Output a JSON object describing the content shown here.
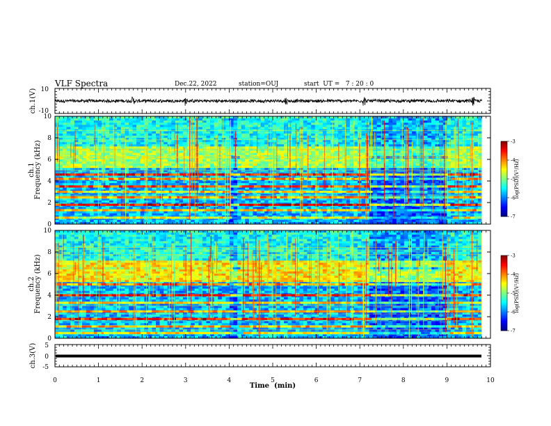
{
  "header": {
    "title": "VLF Spectra",
    "date": "Dec.22, 2022",
    "station": "station=OUJ",
    "start_time": "start  UT =   7 : 20 : 0"
  },
  "chart_data": [
    {
      "type": "line",
      "panel": "ch1-waveform",
      "ylabel": "ch.1(V)",
      "ylim": [
        -10,
        10
      ],
      "yticks": [
        10,
        -10
      ],
      "xlim": [
        0,
        10
      ],
      "signal": "noisy waveform centered near 0 V, amplitude about ±1 V with spikes to about ±3 V",
      "spikes_min": [
        1.8,
        3.0,
        5.3,
        7.1,
        9.6
      ]
    },
    {
      "type": "heatmap",
      "panel": "ch1-spectrogram",
      "ylabel": "ch.1\nFrequency (kHz)",
      "ylim": [
        0,
        10
      ],
      "yticks": [
        "0",
        "2",
        "4",
        "6",
        "8",
        "10"
      ],
      "xlim": [
        0,
        9.8
      ],
      "colorbar": {
        "label": "log(PSD)(V²/Hz)",
        "range": [
          -7,
          -3
        ],
        "ticks": [
          "-3",
          "-4",
          "-5",
          "-6",
          "-7"
        ]
      },
      "bands_khz": [
        {
          "f": 6.2,
          "level": -4.8
        },
        {
          "f": 4.6,
          "level": -3.6
        },
        {
          "f": 4.2,
          "level": -4.2
        },
        {
          "f": 3.5,
          "level": -3.8
        },
        {
          "f": 3.0,
          "level": -4.4
        },
        {
          "f": 2.5,
          "level": -4.1
        },
        {
          "f": 1.8,
          "level": -3.5
        },
        {
          "f": 1.3,
          "level": -4.3
        },
        {
          "f": 0.6,
          "level": -4.5
        }
      ],
      "quiet_intervals_min": [
        [
          4.0,
          4.2
        ],
        [
          7.2,
          9.0
        ]
      ]
    },
    {
      "type": "heatmap",
      "panel": "ch2-spectrogram",
      "ylabel": "ch.2\nFrequency (kHz)",
      "ylim": [
        0,
        10
      ],
      "yticks": [
        "0",
        "2",
        "4",
        "6",
        "8",
        "10"
      ],
      "xlim": [
        0,
        9.8
      ],
      "colorbar": {
        "label": "log(PSD)(V²/Hz)",
        "range": [
          -7,
          -3
        ],
        "ticks": [
          "-3",
          "-4",
          "-5",
          "-6",
          "-7"
        ]
      },
      "bands_khz": [
        {
          "f": 6.5,
          "level": -4.6
        },
        {
          "f": 5.0,
          "level": -4.0
        },
        {
          "f": 4.0,
          "level": -3.6
        },
        {
          "f": 3.3,
          "level": -4.3
        },
        {
          "f": 2.5,
          "level": -4.0
        },
        {
          "f": 1.8,
          "level": -3.6
        },
        {
          "f": 1.1,
          "level": -4.2
        },
        {
          "f": 0.5,
          "level": -4.5
        }
      ],
      "quiet_intervals_min": [
        [
          4.0,
          4.2
        ],
        [
          7.2,
          9.0
        ]
      ]
    },
    {
      "type": "line",
      "panel": "ch3-waveform",
      "ylabel": "ch.3(V)",
      "ylim": [
        -5,
        5
      ],
      "yticks": [
        "5",
        "0",
        "-5"
      ],
      "xlim": [
        0,
        10
      ],
      "signal": "flat line at about 0 V"
    }
  ],
  "xaxis": {
    "label": "Time  (min)",
    "ticks": [
      "0",
      "1",
      "2",
      "3",
      "4",
      "5",
      "6",
      "7",
      "8",
      "9",
      "10"
    ]
  }
}
